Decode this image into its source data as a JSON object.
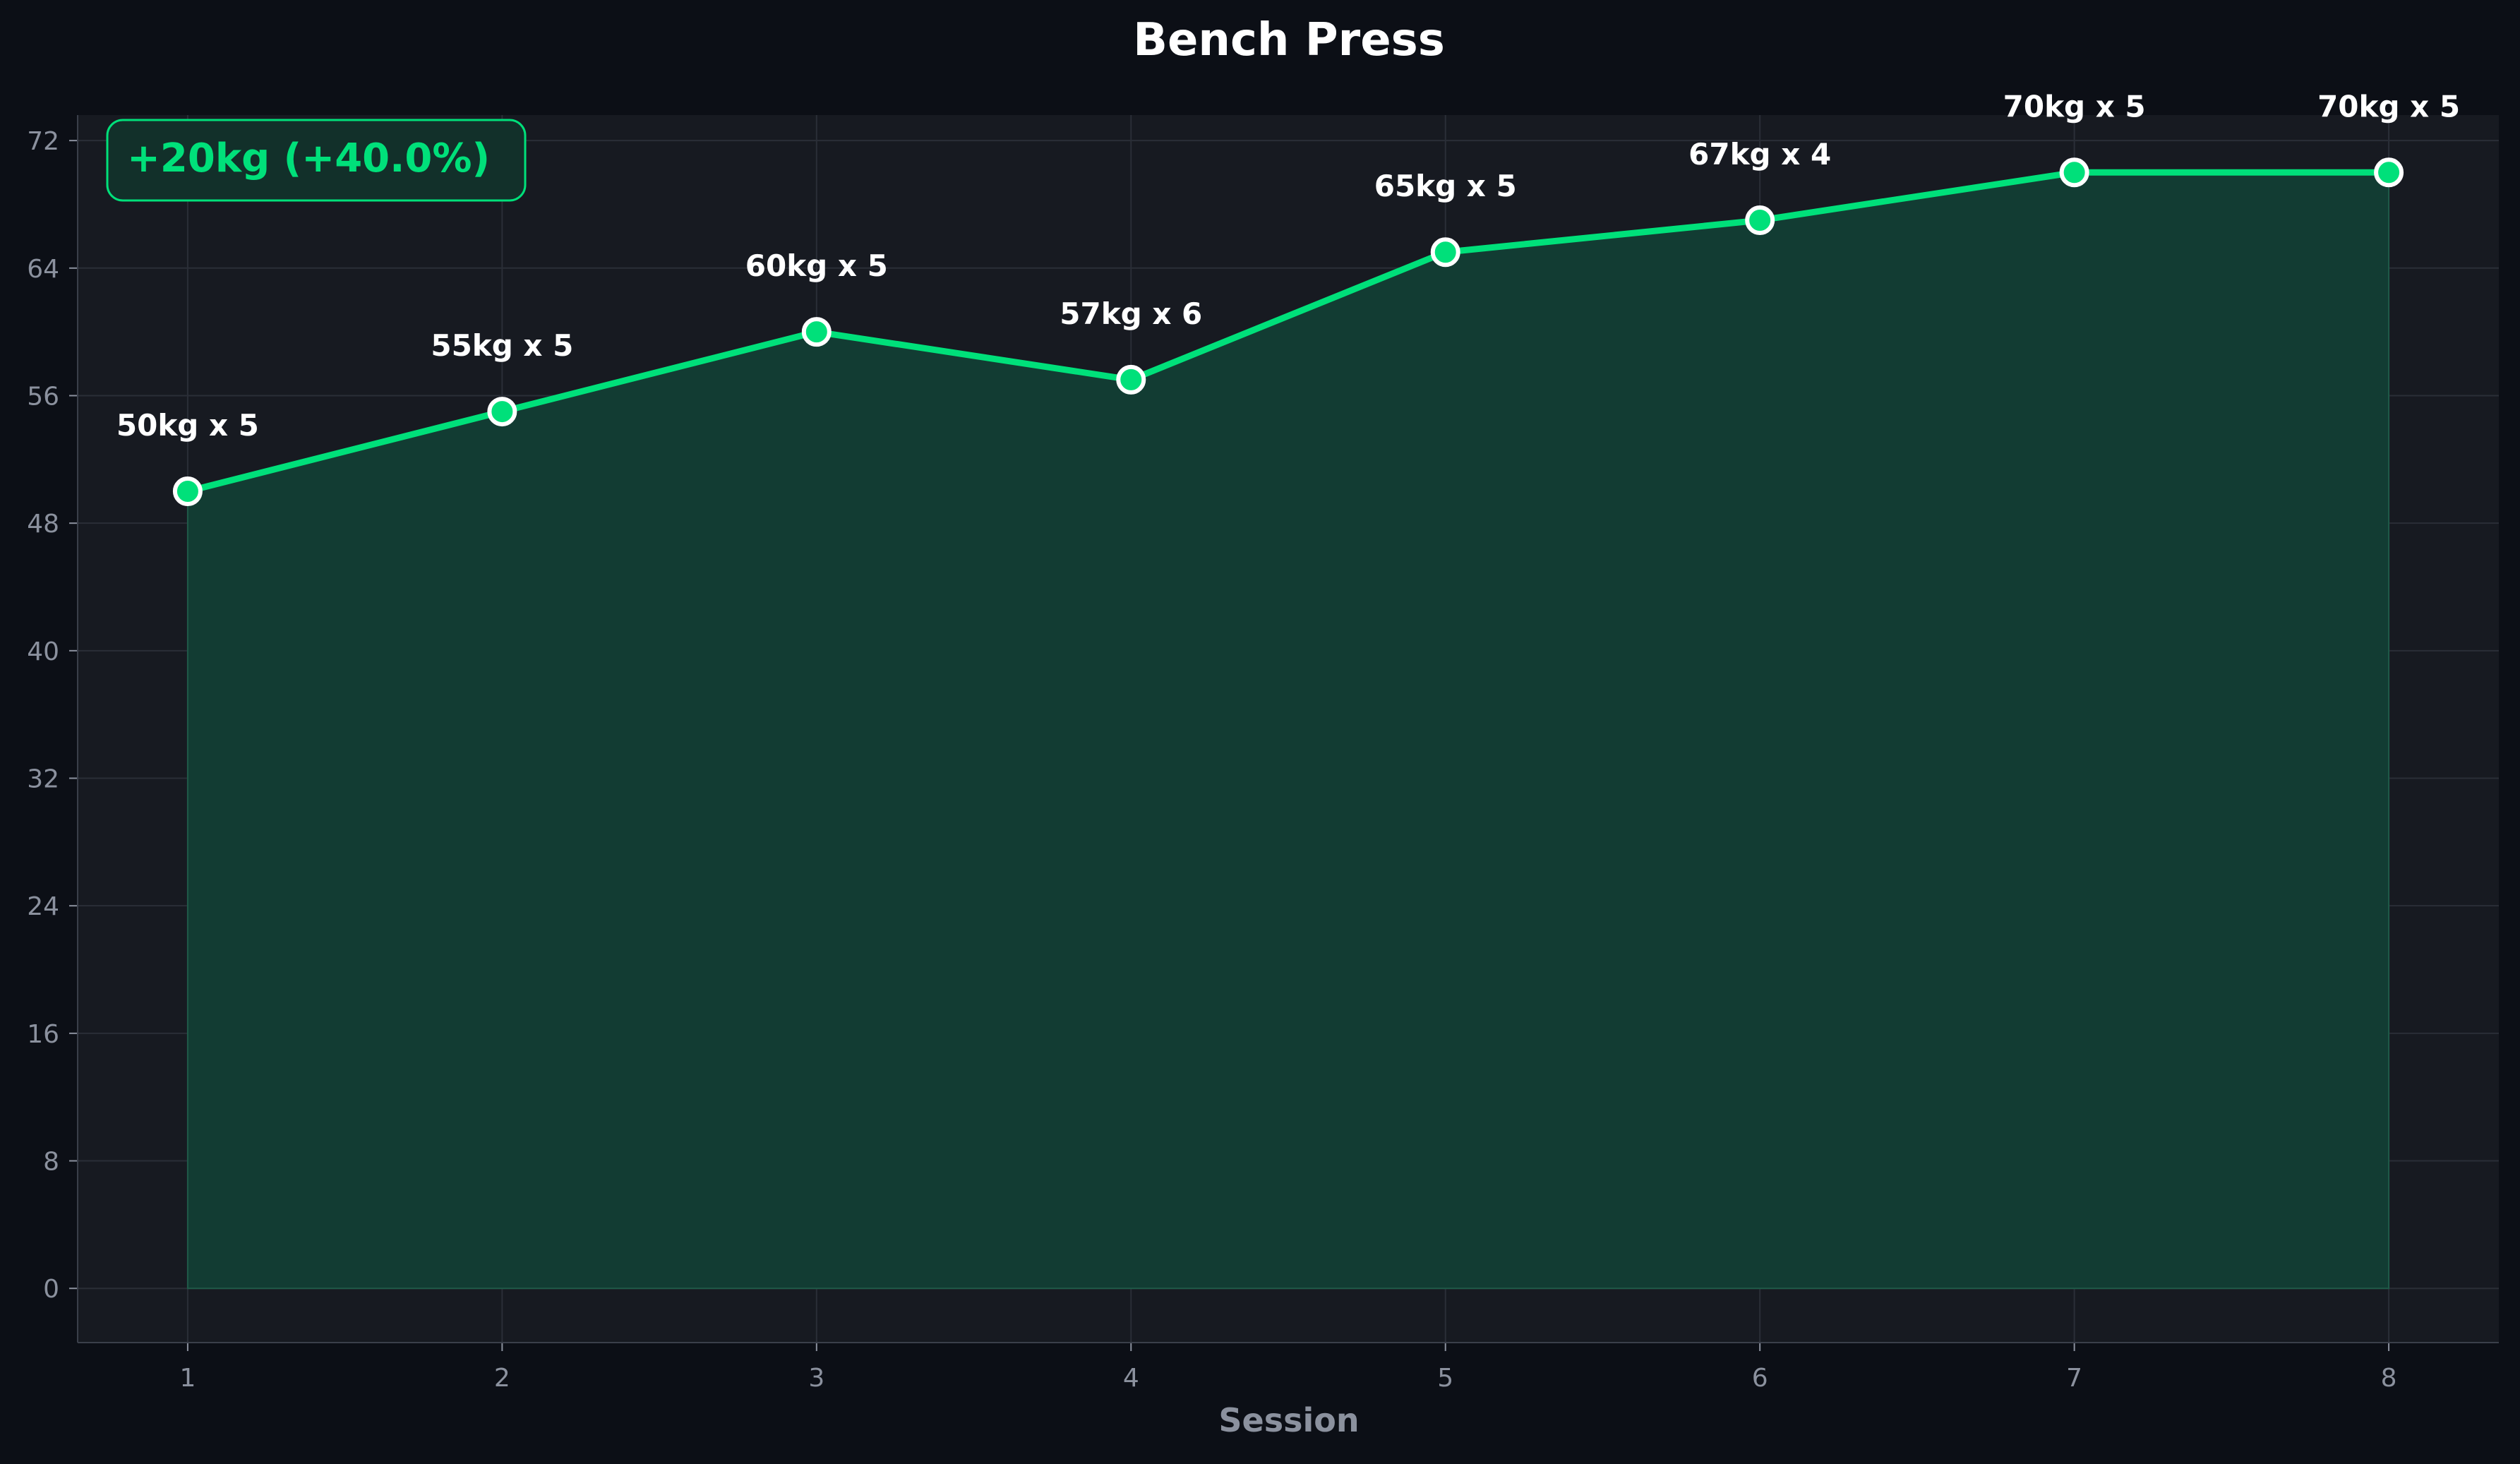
{
  "chart_data": {
    "type": "line",
    "title": "Bench Press",
    "xlabel": "Session",
    "ylabel": "",
    "x": [
      1,
      2,
      3,
      4,
      5,
      6,
      7,
      8
    ],
    "x_ticks": [
      "1",
      "2",
      "3",
      "4",
      "5",
      "6",
      "7",
      "8"
    ],
    "y_ticks": [
      "0",
      "8",
      "16",
      "24",
      "32",
      "40",
      "48",
      "56",
      "64",
      "72"
    ],
    "series": [
      {
        "values": [
          50,
          55,
          60,
          57,
          65,
          67,
          70,
          70
        ],
        "color": "#00e07a",
        "fill": true
      }
    ],
    "data_labels": [
      "50kg x 5",
      "55kg x 5",
      "60kg x 5",
      "57kg x 6",
      "65kg x 5",
      "67kg x 4",
      "70kg x 5",
      "70kg x 5"
    ],
    "annotation": "+20kg (+40.0%)",
    "xlim": [
      0.65,
      8.35
    ],
    "ylim": [
      -3.4,
      73.6
    ],
    "grid": true,
    "colors": {
      "background": "#0c0f16",
      "plot_background": "#171a21",
      "line": "#00e07a",
      "area_fill": "#123c33",
      "grid": "#2a2e37",
      "text": "#ffffff",
      "muted_text": "#8b919e"
    }
  }
}
